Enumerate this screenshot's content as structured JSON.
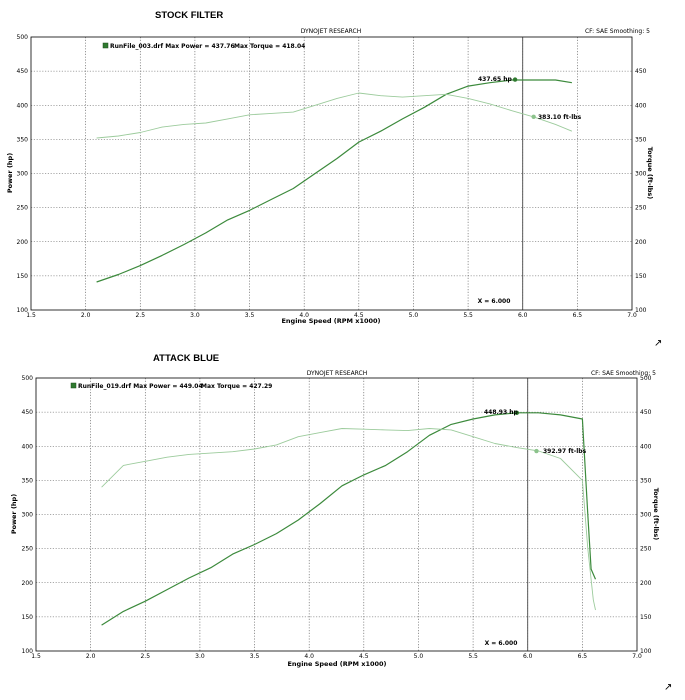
{
  "chart_data": [
    {
      "type": "line",
      "title": "STOCK FILTER",
      "subtitle": "DYNOJET RESEARCH",
      "header_right": "CF: SAE  Smoothing: 5",
      "legend": "RunFile_003.drf Max Power = 437.76",
      "max_torque_label": "Max Torque = 418.04",
      "xlabel": "Engine Speed (RPM x1000)",
      "ylabel_left": "Power (hp)",
      "ylabel_right": "Torque (ft-lbs)",
      "xlim": [
        1.5,
        7.0
      ],
      "ylim": [
        100,
        500
      ],
      "x_ticks": [
        "1.5",
        "2.0",
        "2.5",
        "3.0",
        "3.5",
        "4.0",
        "4.5",
        "5.0",
        "5.5",
        "6.0",
        "6.5",
        "7.0"
      ],
      "y_ticks_left": [
        "100",
        "150",
        "200",
        "250",
        "300",
        "350",
        "400",
        "450",
        "500"
      ],
      "y_ticks_right": [
        "100",
        "150",
        "200",
        "250",
        "300",
        "350",
        "400",
        "450"
      ],
      "cursor_x": 6.0,
      "cursor_label": "X = 6.000",
      "power_marker_label": "437.65 hp",
      "torque_marker_label": "383.10 ft-lbs",
      "power_marker": [
        5.93,
        437.65
      ],
      "torque_marker": [
        6.1,
        383.1
      ],
      "series": [
        {
          "name": "Power",
          "color": "#3c8a3c",
          "x": [
            2.1,
            2.3,
            2.5,
            2.7,
            2.9,
            3.1,
            3.3,
            3.5,
            3.7,
            3.9,
            4.1,
            4.3,
            4.5,
            4.7,
            4.9,
            5.1,
            5.3,
            5.5,
            5.7,
            5.9,
            6.1,
            6.3,
            6.45
          ],
          "y": [
            141,
            152,
            165,
            180,
            196,
            213,
            232,
            246,
            262,
            278,
            300,
            322,
            346,
            362,
            380,
            397,
            416,
            428,
            433,
            437,
            437,
            437,
            433
          ]
        },
        {
          "name": "Torque",
          "color": "#9ccb9c",
          "x": [
            2.1,
            2.3,
            2.5,
            2.7,
            2.9,
            3.1,
            3.3,
            3.5,
            3.7,
            3.9,
            4.1,
            4.3,
            4.5,
            4.7,
            4.9,
            5.1,
            5.3,
            5.5,
            5.7,
            5.9,
            6.1,
            6.3,
            6.45
          ],
          "y": [
            352,
            355,
            360,
            368,
            372,
            374,
            380,
            386,
            388,
            390,
            400,
            410,
            418,
            414,
            412,
            414,
            416,
            410,
            402,
            392,
            383,
            372,
            362
          ]
        }
      ]
    },
    {
      "type": "line",
      "title": "ATTACK BLUE",
      "subtitle": "DYNOJET RESEARCH",
      "header_right": "CF: SAE  Smoothing: 5",
      "legend": "RunFile_019.drf Max Power = 449.04",
      "max_torque_label": "Max Torque = 427.29",
      "xlabel": "Engine Speed (RPM x1000)",
      "ylabel_left": "Power (hp)",
      "ylabel_right": "Torque (ft-lbs)",
      "xlim": [
        1.5,
        7.0
      ],
      "ylim": [
        100,
        500
      ],
      "x_ticks": [
        "1.5",
        "2.0",
        "2.5",
        "3.0",
        "3.5",
        "4.0",
        "4.5",
        "5.0",
        "5.5",
        "6.0",
        "6.5",
        "7.0"
      ],
      "y_ticks_left": [
        "100",
        "150",
        "200",
        "250",
        "300",
        "350",
        "400",
        "450",
        "500"
      ],
      "y_ticks_right": [
        "100",
        "150",
        "200",
        "250",
        "300",
        "350",
        "400",
        "450",
        "500"
      ],
      "cursor_x": 6.0,
      "cursor_label": "X = 6.000",
      "power_marker_label": "448.93 hp",
      "torque_marker_label": "392.97 ft-lbs",
      "power_marker": [
        5.9,
        448.93
      ],
      "torque_marker": [
        6.08,
        392.97
      ],
      "series": [
        {
          "name": "Power",
          "color": "#3c8a3c",
          "x": [
            2.1,
            2.3,
            2.5,
            2.7,
            2.9,
            3.1,
            3.3,
            3.5,
            3.7,
            3.9,
            4.1,
            4.3,
            4.5,
            4.7,
            4.9,
            5.1,
            5.3,
            5.5,
            5.7,
            5.9,
            6.1,
            6.3,
            6.5,
            6.55,
            6.58,
            6.62
          ],
          "y": [
            138,
            158,
            173,
            190,
            207,
            222,
            242,
            256,
            272,
            292,
            316,
            342,
            358,
            372,
            392,
            416,
            432,
            440,
            446,
            449,
            449,
            446,
            440,
            300,
            220,
            205
          ]
        },
        {
          "name": "Torque",
          "color": "#9ccb9c",
          "x": [
            2.1,
            2.3,
            2.5,
            2.7,
            2.9,
            3.1,
            3.3,
            3.5,
            3.7,
            3.9,
            4.1,
            4.3,
            4.5,
            4.7,
            4.9,
            5.1,
            5.3,
            5.5,
            5.7,
            5.9,
            6.1,
            6.3,
            6.5,
            6.55,
            6.6,
            6.62
          ],
          "y": [
            340,
            372,
            378,
            384,
            388,
            390,
            392,
            396,
            402,
            414,
            420,
            426,
            425,
            424,
            423,
            426,
            424,
            414,
            404,
            398,
            393,
            382,
            350,
            250,
            175,
            160
          ]
        }
      ]
    }
  ]
}
